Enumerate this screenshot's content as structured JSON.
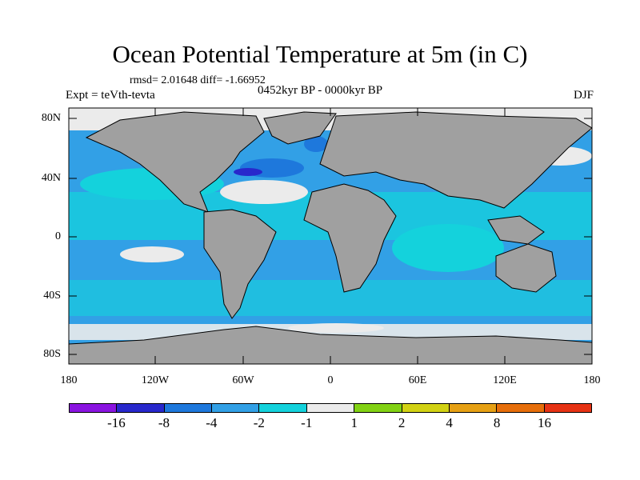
{
  "title": "Ocean Potential Temperature at 5m (in C)",
  "stats": "rmsd= 2.01648 diff= -1.66952",
  "experiment": "Expt = teVth-tevta",
  "period": "0452kyr BP - 0000kyr BP",
  "season": "DJF",
  "lat_labels": [
    "80N",
    "40N",
    "0",
    "40S",
    "80S"
  ],
  "lon_labels": [
    "180",
    "120W",
    "60W",
    "0",
    "60E",
    "120E",
    "180"
  ],
  "colorbar": {
    "colors": [
      "#8a14e0",
      "#2828cc",
      "#1e78dc",
      "#32a0e6",
      "#14d2dc",
      "#ebebeb",
      "#82d214",
      "#d2d214",
      "#e6a014",
      "#e66e0a",
      "#e63214"
    ],
    "labels": [
      "-16",
      "-8",
      "-4",
      "-2",
      "-1",
      "1",
      "2",
      "4",
      "8",
      "16"
    ]
  },
  "colors": {
    "ocean_main": "#32a0e6",
    "ocean_light": "#14d2dc",
    "neutral": "#ebebeb",
    "land": "#a0a0a0",
    "cold": "#1e78dc",
    "coldest": "#2828cc",
    "warm": "#82d214"
  }
}
